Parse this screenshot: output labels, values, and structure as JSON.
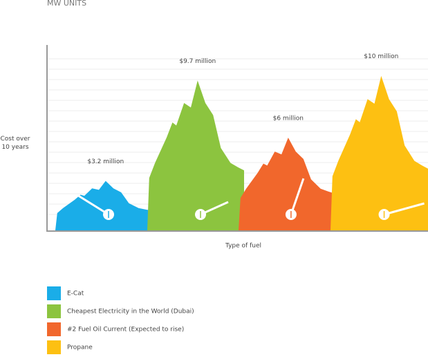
{
  "chart_data": {
    "type": "mountain",
    "title": "MW UNITS",
    "y_label": "Cost over 10 years",
    "x_label": "Type of fuel",
    "ylim": [
      0,
      12
    ],
    "series": [
      {
        "name": "E-Cat",
        "color": "#1aade8",
        "values": [
          3.2
        ],
        "value_labels": [
          "$3.2 million"
        ]
      },
      {
        "name": "Cheapest Electricity in the World (Dubai)",
        "color": "#8cc43f",
        "values": [
          9.7
        ],
        "value_labels": [
          "$9.7 million"
        ]
      },
      {
        "name": "#2 Fuel Oil Current (Expected to rise)",
        "color": "#f1672c",
        "values": [
          6
        ],
        "value_labels": [
          "$6 million"
        ]
      },
      {
        "name": "Propane",
        "color": "#fdc012",
        "values": [
          10
        ],
        "value_labels": [
          "$10 million"
        ]
      }
    ]
  }
}
